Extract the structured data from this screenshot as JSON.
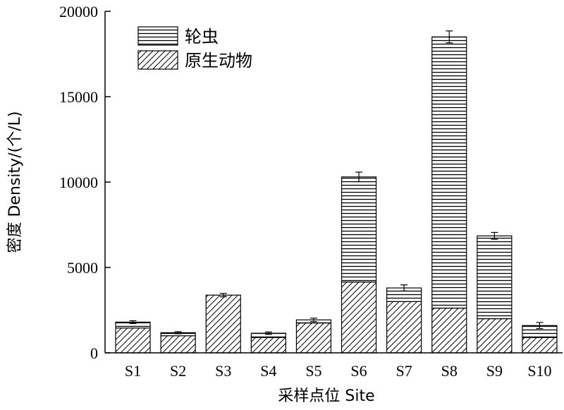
{
  "chart_data": {
    "type": "bar",
    "stacked": true,
    "title": "",
    "xlabel": "采样点位 Site",
    "ylabel": "密度 Density/(个/L)",
    "ylim": [
      0,
      20000
    ],
    "yticks": [
      "0",
      "5000",
      "10000",
      "15000",
      "20000"
    ],
    "categories": [
      "S1",
      "S2",
      "S3",
      "S4",
      "S5",
      "S6",
      "S7",
      "S8",
      "S9",
      "S10"
    ],
    "series": [
      {
        "name": "原生动物",
        "pattern": "diagonal-hatch",
        "values": [
          1450,
          1000,
          3380,
          900,
          1750,
          4150,
          3000,
          2620,
          2000,
          900
        ]
      },
      {
        "name": "轮虫",
        "pattern": "horizontal-lines",
        "values": [
          350,
          180,
          0,
          250,
          180,
          6150,
          800,
          15880,
          4850,
          700
        ]
      }
    ],
    "error_bars": [
      80,
      60,
      100,
      70,
      100,
      280,
      180,
      350,
      200,
      180
    ],
    "legend": {
      "position": "top-left",
      "order": [
        "轮虫",
        "原生动物"
      ]
    },
    "grid": false,
    "color": "#000000"
  }
}
